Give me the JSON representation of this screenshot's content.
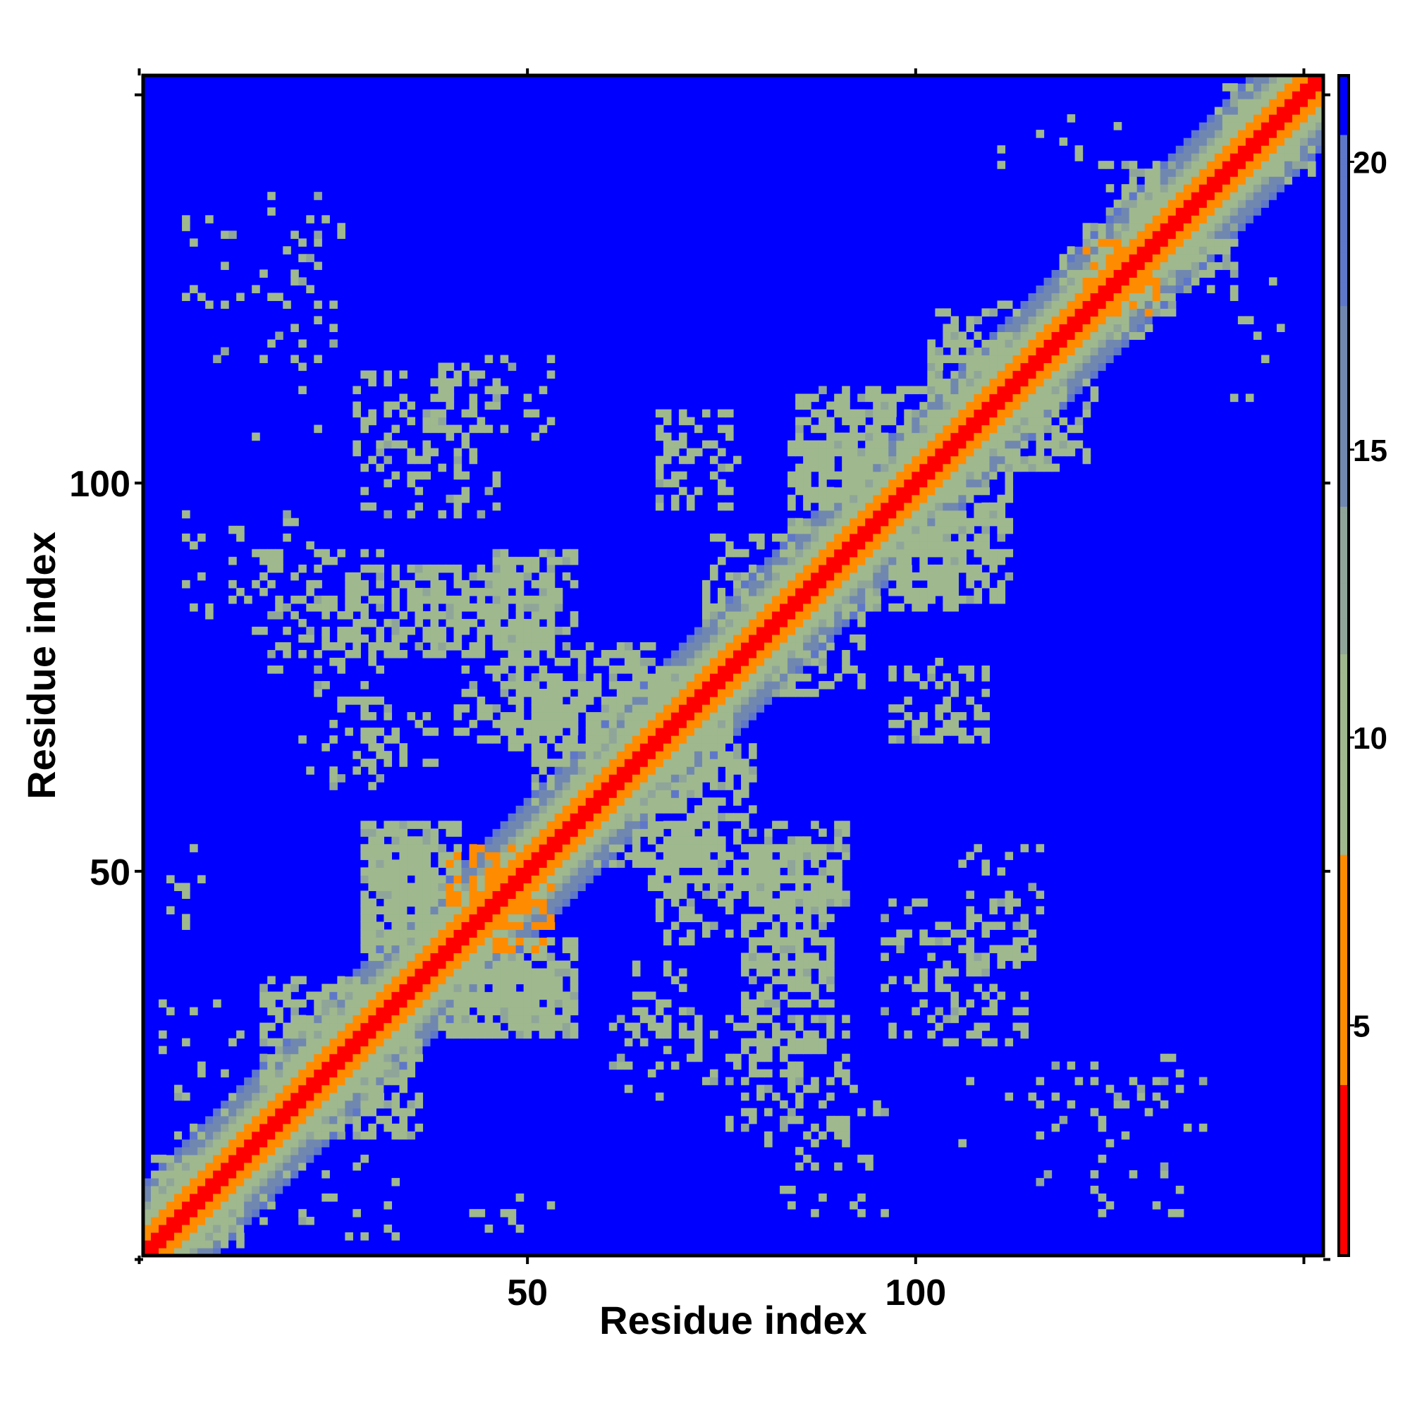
{
  "chart_data": {
    "type": "heatmap",
    "title": "",
    "xlabel": "Residue index",
    "ylabel": "Residue index",
    "n_residues": 152,
    "xlim": [
      1,
      152
    ],
    "ylim": [
      1,
      152
    ],
    "x_ticks": [
      0,
      50,
      100,
      150
    ],
    "x_tick_labels": [
      "",
      "50",
      "100",
      ""
    ],
    "y_ticks": [
      0,
      50,
      100,
      150
    ],
    "y_tick_labels": [
      "",
      "50",
      "100",
      ""
    ],
    "colorbar": {
      "ticks": [
        5,
        10,
        15,
        20
      ],
      "tick_labels": [
        "5",
        "10",
        "15",
        "20"
      ],
      "range": [
        1,
        21.5
      ],
      "colors": [
        {
          "max": 4,
          "color": "#ff0000"
        },
        {
          "max": 8,
          "color": "#ff8c00"
        },
        {
          "max": 11.5,
          "color": "#9fb88e"
        },
        {
          "max": 14,
          "color": "#8fa59a"
        },
        {
          "max": 17.5,
          "color": "#7088b0"
        },
        {
          "max": 20.5,
          "color": "#5f77c9"
        },
        {
          "max": 99,
          "color": "#0000ff"
        }
      ]
    },
    "background_value": 21.5,
    "diagonal_band": {
      "profile": [
        0.5,
        3.8,
        5.5,
        7.0,
        8.5,
        10.2,
        12.5,
        15.0,
        17.0,
        19.0,
        21.0
      ]
    },
    "contact_regions": [
      {
        "i": [
          3,
          12
        ],
        "j": [
          1,
          10
        ],
        "value": 11,
        "density": 0.5
      },
      {
        "i": [
          15,
          30
        ],
        "j": [
          20,
          35
        ],
        "value": 11,
        "density": 0.6
      },
      {
        "i": [
          28,
          38
        ],
        "j": [
          40,
          52
        ],
        "value": 11,
        "density": 0.65
      },
      {
        "i": [
          38,
          55
        ],
        "j": [
          28,
          40
        ],
        "value": 11,
        "density": 0.7
      },
      {
        "i": [
          42,
          52
        ],
        "j": [
          39,
          48
        ],
        "value": 6.5,
        "density": 0.35
      },
      {
        "i": [
          28,
          37
        ],
        "j": [
          62,
          70
        ],
        "value": 11,
        "density": 0.35
      },
      {
        "i": [
          32,
          45
        ],
        "j": [
          78,
          88
        ],
        "value": 11,
        "density": 0.35
      },
      {
        "i": [
          45,
          55
        ],
        "j": [
          80,
          90
        ],
        "value": 11,
        "density": 0.55
      },
      {
        "i": [
          45,
          65
        ],
        "j": [
          65,
          78
        ],
        "value": 11,
        "density": 0.5
      },
      {
        "i": [
          58,
          72
        ],
        "j": [
          50,
          65
        ],
        "value": 11,
        "density": 0.45
      },
      {
        "i": [
          66,
          75
        ],
        "j": [
          40,
          52
        ],
        "value": 11,
        "density": 0.4
      },
      {
        "i": [
          77,
          88
        ],
        "j": [
          40,
          52
        ],
        "value": 11,
        "density": 0.55
      },
      {
        "i": [
          77,
          88
        ],
        "j": [
          26,
          38
        ],
        "value": 11,
        "density": 0.4
      },
      {
        "i": [
          66,
          75
        ],
        "j": [
          62,
          75
        ],
        "value": 11,
        "density": 0.35
      },
      {
        "i": [
          80,
          92
        ],
        "j": [
          72,
          84
        ],
        "value": 11,
        "density": 0.4
      },
      {
        "i": [
          84,
          98
        ],
        "j": [
          98,
          110
        ],
        "value": 11,
        "density": 0.55
      },
      {
        "i": [
          92,
          104
        ],
        "j": [
          83,
          95
        ],
        "value": 11,
        "density": 0.6
      },
      {
        "i": [
          96,
          108
        ],
        "j": [
          66,
          76
        ],
        "value": 11,
        "density": 0.3
      },
      {
        "i": [
          95,
          113
        ],
        "j": [
          27,
          45
        ],
        "value": 11,
        "density": 0.3
      },
      {
        "i": [
          105,
          115
        ],
        "j": [
          38,
          52
        ],
        "value": 11,
        "density": 0.25
      },
      {
        "i": [
          87,
          101
        ],
        "j": [
          102,
          111
        ],
        "value": 11,
        "density": 0.35
      },
      {
        "i": [
          101,
          110
        ],
        "j": [
          108,
          118
        ],
        "value": 11,
        "density": 0.45
      },
      {
        "i": [
          112,
          122
        ],
        "j": [
          102,
          112
        ],
        "value": 11,
        "density": 0.4
      },
      {
        "i": [
          125,
          132
        ],
        "j": [
          118,
          128
        ],
        "value": 11,
        "density": 0.45
      },
      {
        "i": [
          121,
          130
        ],
        "j": [
          122,
          130
        ],
        "value": 6.5,
        "density": 0.3
      },
      {
        "i": [
          133,
          140
        ],
        "j": [
          124,
          132
        ],
        "value": 11,
        "density": 0.5
      },
      {
        "i": [
          140,
          150
        ],
        "j": [
          138,
          149
        ],
        "value": 11,
        "density": 0.5
      },
      {
        "i": [
          75,
          90
        ],
        "j": [
          16,
          30
        ],
        "value": 11,
        "density": 0.3
      },
      {
        "i": [
          80,
          95
        ],
        "j": [
          5,
          22
        ],
        "value": 11,
        "density": 0.12
      },
      {
        "i": [
          115,
          135
        ],
        "j": [
          5,
          25
        ],
        "value": 11,
        "density": 0.08
      },
      {
        "i": [
          140,
          146
        ],
        "j": [
          110,
          125
        ],
        "value": 11,
        "density": 0.12
      },
      {
        "i": [
          2,
          12
        ],
        "j": [
          10,
          32
        ],
        "value": 11,
        "density": 0.15
      },
      {
        "i": [
          20,
          30
        ],
        "j": [
          60,
          80
        ],
        "value": 11,
        "density": 0.15
      },
      {
        "i": [
          14,
          22
        ],
        "j": [
          104,
          136
        ],
        "value": 11,
        "density": 0.07
      },
      {
        "i": [
          3,
          8
        ],
        "j": [
          42,
          52
        ],
        "value": 11,
        "density": 0.15
      }
    ]
  }
}
